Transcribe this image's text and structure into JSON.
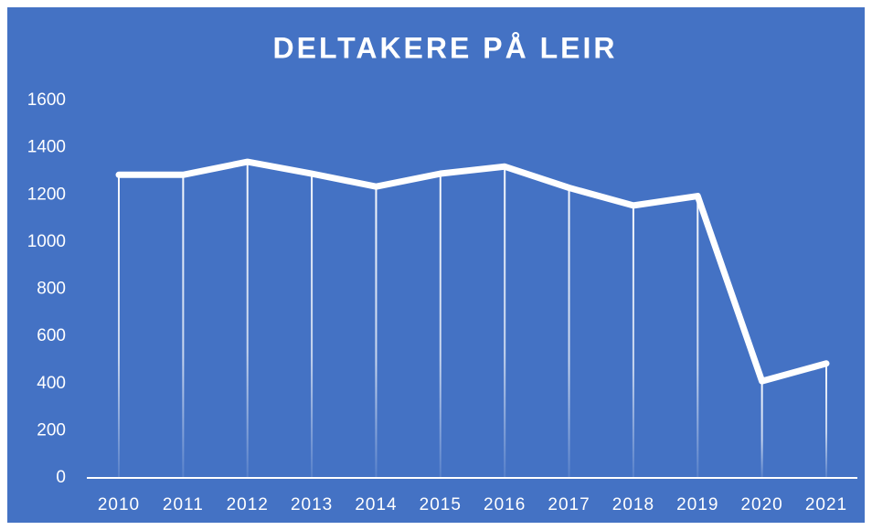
{
  "chart_data": {
    "type": "line",
    "title": "DELTAKERE PÅ LEIR",
    "categories": [
      "2010",
      "2011",
      "2012",
      "2013",
      "2014",
      "2015",
      "2016",
      "2017",
      "2018",
      "2019",
      "2020",
      "2021"
    ],
    "values": [
      1285,
      1285,
      1340,
      1290,
      1235,
      1290,
      1320,
      1230,
      1155,
      1195,
      410,
      485
    ],
    "color": "#ffffff",
    "ylim": [
      0,
      1600
    ],
    "yticks": [
      0,
      200,
      400,
      600,
      800,
      1000,
      1200,
      1400,
      1600
    ],
    "drop_lines": true
  }
}
